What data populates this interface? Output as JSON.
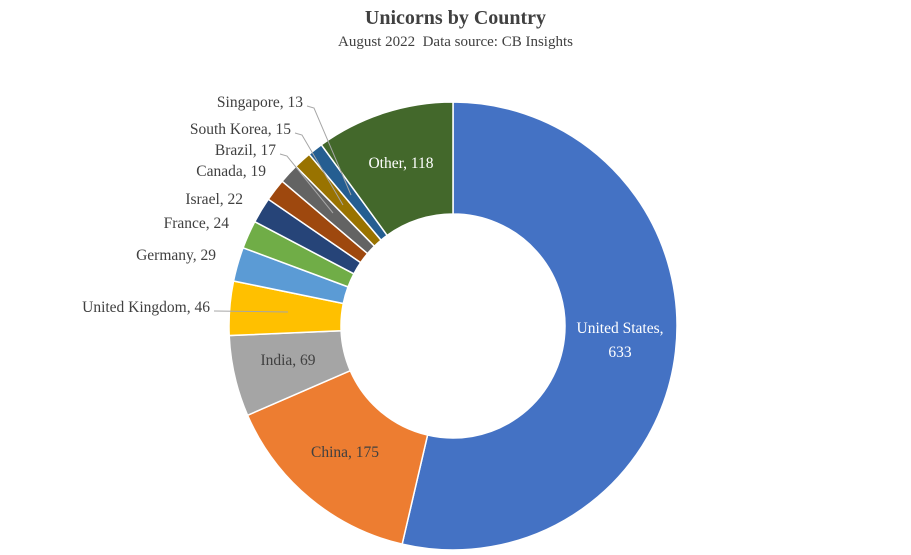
{
  "chart_data": {
    "type": "pie",
    "variant": "donut",
    "title": "Unicorns by Country",
    "subtitle": "August 2022  Data source: CB Insights",
    "slices": [
      {
        "label": "United States",
        "value": 633,
        "color": "#4472C4"
      },
      {
        "label": "China",
        "value": 175,
        "color": "#ED7D31"
      },
      {
        "label": "India",
        "value": 69,
        "color": "#A5A5A5"
      },
      {
        "label": "United Kingdom",
        "value": 46,
        "color": "#FFC000"
      },
      {
        "label": "Germany",
        "value": 29,
        "color": "#5B9BD5"
      },
      {
        "label": "France",
        "value": 24,
        "color": "#70AD47"
      },
      {
        "label": "Israel",
        "value": 22,
        "color": "#264478"
      },
      {
        "label": "Canada",
        "value": 19,
        "color": "#9E480E"
      },
      {
        "label": "Brazil",
        "value": 17,
        "color": "#636363"
      },
      {
        "label": "South Korea",
        "value": 15,
        "color": "#997300"
      },
      {
        "label": "Singapore",
        "value": 13,
        "color": "#255E91"
      },
      {
        "label": "Other",
        "value": 118,
        "color": "#43682B"
      }
    ]
  }
}
